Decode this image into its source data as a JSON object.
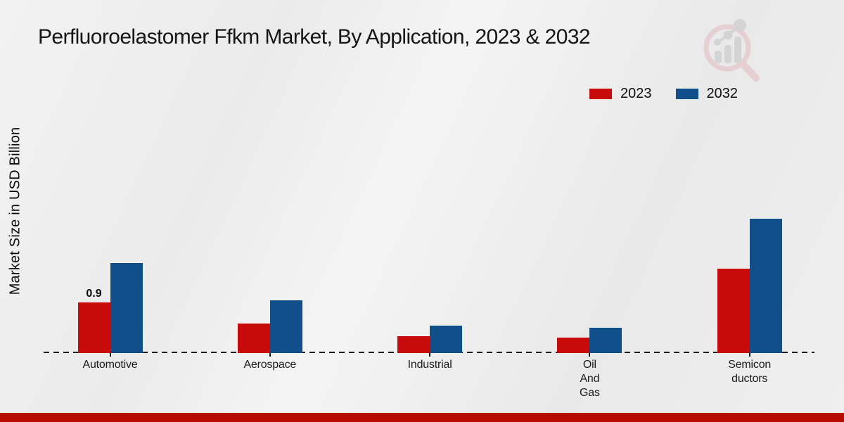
{
  "header": {
    "title": "Perfluoroelastomer Ffkm Market, By Application, 2023 & 2032"
  },
  "axes": {
    "y_label": "Market Size in USD Billion"
  },
  "legend": {
    "items": [
      "2023",
      "2032"
    ],
    "position": "top-right"
  },
  "annotation": {
    "automotive_2023_label": "0.9"
  },
  "colors": {
    "series_2023": "#c90a0a",
    "series_2032": "#114f8a",
    "footer_bar": "#b70b00",
    "axis_line": "#1a1a1a",
    "watermark_pink": "#e3bac0",
    "watermark_gray": "#c4c4c9"
  },
  "chart_data": {
    "type": "bar",
    "title": "Perfluoroelastomer Ffkm Market, By Application, 2023 & 2032",
    "xlabel": "",
    "ylabel": "Market Size in USD Billion",
    "categories": [
      "Automotive",
      "Aerospace",
      "Industrial",
      "Oil And Gas",
      "Semiconductors"
    ],
    "category_label_lines": [
      [
        "Automotive"
      ],
      [
        "Aerospace"
      ],
      [
        "Industrial"
      ],
      [
        "Oil",
        "And",
        "Gas"
      ],
      [
        "Semicon",
        "ductors"
      ]
    ],
    "series": [
      {
        "name": "2023",
        "color": "#c90a0a",
        "values": [
          0.9,
          0.52,
          0.3,
          0.28,
          1.5
        ]
      },
      {
        "name": "2032",
        "color": "#114f8a",
        "values": [
          1.6,
          0.94,
          0.49,
          0.45,
          2.39
        ]
      }
    ],
    "ylim": [
      0,
      2.5
    ],
    "grid": false,
    "legend_position": "top-right",
    "baseline_style": "dashed-zero-line",
    "value_labels": [
      {
        "series": "2023",
        "category_index": 0,
        "text": "0.9"
      }
    ]
  }
}
